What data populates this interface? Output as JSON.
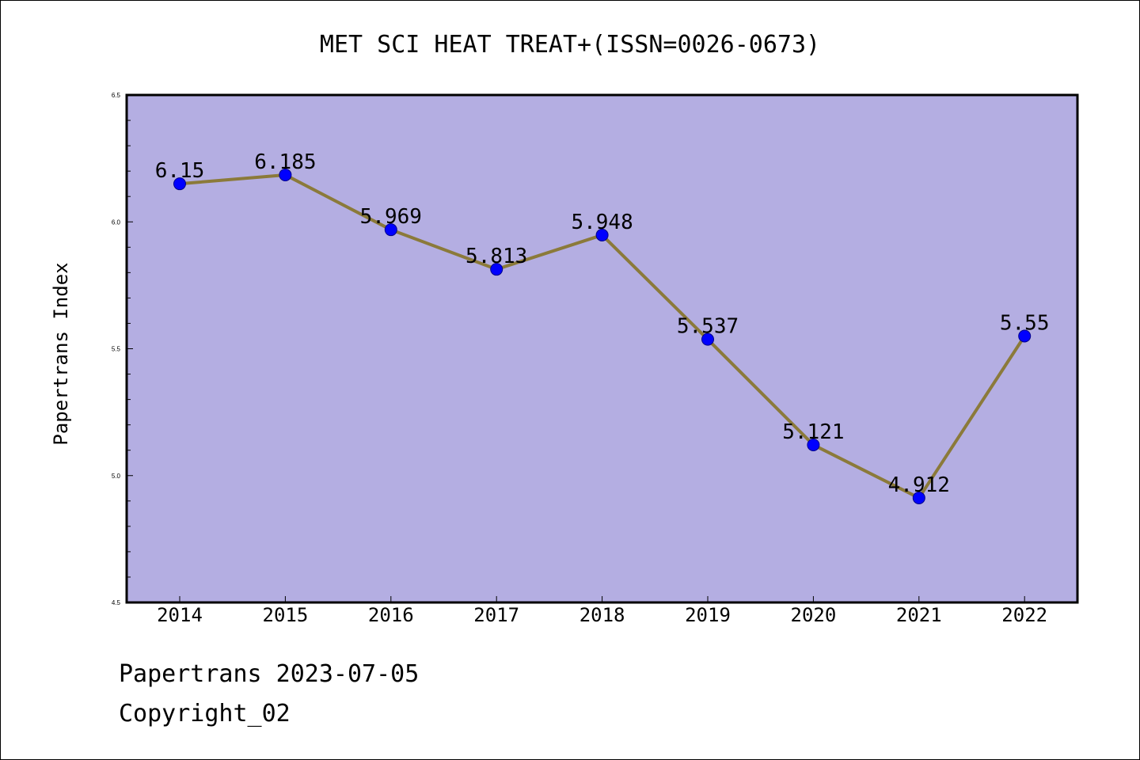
{
  "colors": {
    "plot_background": "#b4aee2",
    "line": "#8b7a3a",
    "marker": "#0000ff",
    "marker_edge": "#00008b"
  },
  "footer": {
    "line1": "Papertrans 2023-07-05",
    "line2": "Copyright_02"
  },
  "chart_data": {
    "type": "line",
    "title": "MET SCI HEAT TREAT+(ISSN=0026-0673)",
    "xlabel": "",
    "ylabel": "Papertrans Index",
    "categories": [
      "2014",
      "2015",
      "2016",
      "2017",
      "2018",
      "2019",
      "2020",
      "2021",
      "2022"
    ],
    "series": [
      {
        "values": [
          6.15,
          6.185,
          5.969,
          5.813,
          5.948,
          5.537,
          5.121,
          4.912,
          5.55
        ]
      }
    ],
    "data_labels": [
      "6.15",
      "6.185",
      "5.969",
      "5.813",
      "5.948",
      "5.537",
      "5.121",
      "4.912",
      "5.55"
    ],
    "ylim": [
      4.5,
      6.5
    ],
    "yticks": [
      "4.5",
      "5.0",
      "5.5",
      "6.0",
      "6.5"
    ],
    "grid": false,
    "legend": "none"
  }
}
